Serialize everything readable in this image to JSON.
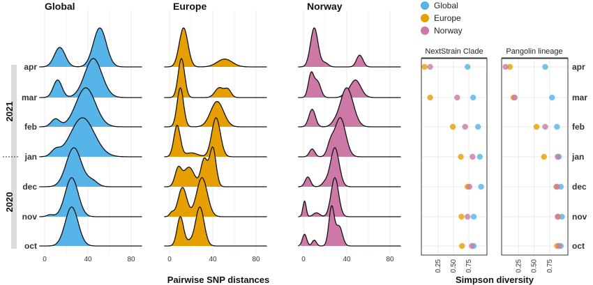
{
  "months": [
    "apr",
    "mar",
    "feb",
    "jan",
    "dec",
    "nov",
    "oct"
  ],
  "years": [
    {
      "label": "2021",
      "months": [
        "apr",
        "mar",
        "feb",
        "jan"
      ]
    },
    {
      "label": "2020",
      "months": [
        "dec",
        "nov",
        "oct"
      ]
    }
  ],
  "legend": [
    {
      "name": "Global",
      "color": "#56b4e9"
    },
    {
      "name": "Europe",
      "color": "#e69f00"
    },
    {
      "name": "Norway",
      "color": "#cc79a7"
    }
  ],
  "chart_data": [
    {
      "type": "area",
      "subtype": "ridgeline",
      "title": "Global",
      "color": "#56b4e9",
      "xlabel": "Pairwise SNP distances",
      "xlim": [
        -5,
        90
      ],
      "xticks": [
        0,
        40,
        80
      ],
      "rows": [
        {
          "month": "apr",
          "peaks": [
            [
              14,
              5,
              0.5
            ],
            [
              51,
              6,
              1.0
            ]
          ]
        },
        {
          "month": "mar",
          "peaks": [
            [
              12,
              4,
              0.45
            ],
            [
              45,
              8,
              1.0
            ]
          ]
        },
        {
          "month": "feb",
          "peaks": [
            [
              10,
              4,
              0.2
            ],
            [
              38,
              9,
              1.0
            ]
          ]
        },
        {
          "month": "jan",
          "peaks": [
            [
              10,
              4,
              0.15
            ],
            [
              35,
              11,
              1.0
            ]
          ]
        },
        {
          "month": "dec",
          "peaks": [
            [
              27,
              7,
              1.0
            ],
            [
              44,
              5,
              0.15
            ]
          ]
        },
        {
          "month": "nov",
          "peaks": [
            [
              25,
              6,
              1.0
            ],
            [
              5,
              3,
              0.05
            ]
          ]
        },
        {
          "month": "oct",
          "peaks": [
            [
              25,
              6,
              1.0
            ]
          ]
        }
      ]
    },
    {
      "type": "area",
      "subtype": "ridgeline",
      "title": "Europe",
      "color": "#e69f00",
      "xlabel": "Pairwise SNP distances",
      "xlim": [
        -5,
        90
      ],
      "xticks": [
        0,
        40,
        80
      ],
      "rows": [
        {
          "month": "apr",
          "peaks": [
            [
              13,
              4,
              1.0
            ],
            [
              51,
              7,
              0.2
            ]
          ]
        },
        {
          "month": "mar",
          "peaks": [
            [
              11,
              3,
              1.0
            ],
            [
              46,
              4,
              0.25
            ],
            [
              54,
              3,
              0.2
            ]
          ]
        },
        {
          "month": "feb",
          "peaks": [
            [
              10,
              3,
              1.0
            ],
            [
              44,
              6,
              0.65
            ]
          ]
        },
        {
          "month": "jan",
          "peaks": [
            [
              7,
              3,
              0.8
            ],
            [
              43,
              4,
              1.0
            ],
            [
              20,
              6,
              0.1
            ]
          ]
        },
        {
          "month": "dec",
          "peaks": [
            [
              8,
              3,
              0.45
            ],
            [
              18,
              5,
              0.5
            ],
            [
              32,
              3,
              0.7
            ],
            [
              40,
              3,
              1.0
            ]
          ]
        },
        {
          "month": "nov",
          "peaks": [
            [
              12,
              4,
              0.75
            ],
            [
              30,
              5,
              1.0
            ],
            [
              2,
              2,
              0.1
            ]
          ]
        },
        {
          "month": "oct",
          "peaks": [
            [
              10,
              3,
              0.75
            ],
            [
              28,
              4,
              1.0
            ],
            [
              18,
              3,
              0.1
            ]
          ]
        }
      ]
    },
    {
      "type": "area",
      "subtype": "ridgeline",
      "title": "Norway",
      "color": "#cc79a7",
      "xlabel": "Pairwise SNP distances",
      "xlim": [
        -5,
        90
      ],
      "xticks": [
        0,
        40,
        80
      ],
      "rows": [
        {
          "month": "apr",
          "peaks": [
            [
              10,
              3.5,
              1.0
            ],
            [
              20,
              3,
              0.1
            ],
            [
              52,
              3,
              0.3
            ]
          ]
        },
        {
          "month": "mar",
          "peaks": [
            [
              7,
              2.5,
              0.6
            ],
            [
              13,
              3,
              0.4
            ],
            [
              48,
              5,
              0.45
            ],
            [
              38,
              3,
              0.05
            ]
          ]
        },
        {
          "month": "feb",
          "peaks": [
            [
              8,
              3,
              0.45
            ],
            [
              40,
              6,
              1.0
            ],
            [
              28,
              3,
              0.05
            ]
          ]
        },
        {
          "month": "jan",
          "peaks": [
            [
              8,
              2.5,
              0.2
            ],
            [
              25,
              3,
              0.3
            ],
            [
              34,
              5,
              1.0
            ]
          ]
        },
        {
          "month": "dec",
          "peaks": [
            [
              4,
              2.5,
              0.25
            ],
            [
              20,
              3,
              0.1
            ],
            [
              29,
              4,
              1.0
            ]
          ]
        },
        {
          "month": "nov",
          "peaks": [
            [
              1,
              1.5,
              0.4
            ],
            [
              12,
              3,
              0.1
            ],
            [
              29,
              3.5,
              1.0
            ]
          ]
        },
        {
          "month": "oct",
          "peaks": [
            [
              1,
              2,
              0.3
            ],
            [
              10,
              2,
              0.15
            ],
            [
              26,
              2.5,
              1.0
            ],
            [
              33,
              3,
              0.5
            ]
          ]
        }
      ]
    },
    {
      "type": "scatter",
      "title": "NextStrain Clade",
      "xlabel": "Simpson diversity",
      "xlim": [
        0,
        1
      ],
      "xticks": [
        0.25,
        0.5,
        0.75
      ],
      "series": [
        {
          "name": "Global",
          "values": {
            "apr": 0.73,
            "mar": 0.82,
            "feb": 0.9,
            "jan": 0.93,
            "dec": 0.95,
            "nov": 0.83,
            "oct": 0.83
          }
        },
        {
          "name": "Europe",
          "values": {
            "apr": 0.03,
            "mar": 0.12,
            "feb": 0.49,
            "jan": 0.62,
            "dec": 0.73,
            "nov": 0.63,
            "oct": 0.64
          }
        },
        {
          "name": "Norway",
          "values": {
            "apr": 0.12,
            "mar": 0.56,
            "feb": 0.69,
            "jan": 0.81,
            "dec": 0.76,
            "nov": 0.73,
            "oct": 0.8
          }
        }
      ]
    },
    {
      "type": "scatter",
      "title": "Pangolin lineage",
      "xlabel": "Simpson diversity",
      "xlim": [
        0,
        1
      ],
      "xticks": [
        0.25,
        0.5,
        0.75
      ],
      "series": [
        {
          "name": "Global",
          "values": {
            "apr": 0.68,
            "mar": 0.79,
            "feb": 0.87,
            "jan": 0.9,
            "dec": 0.93,
            "nov": 0.95,
            "oct": 0.93
          }
        },
        {
          "name": "Europe",
          "values": {
            "apr": 0.11,
            "mar": 0.17,
            "feb": 0.54,
            "jan": 0.66,
            "dec": 0.86,
            "nov": 0.89,
            "oct": 0.87
          }
        },
        {
          "name": "Norway",
          "values": {
            "apr": 0.04,
            "mar": 0.19,
            "feb": 0.68,
            "jan": 0.88,
            "dec": 0.87,
            "nov": 0.88,
            "oct": 0.9
          }
        }
      ]
    }
  ]
}
